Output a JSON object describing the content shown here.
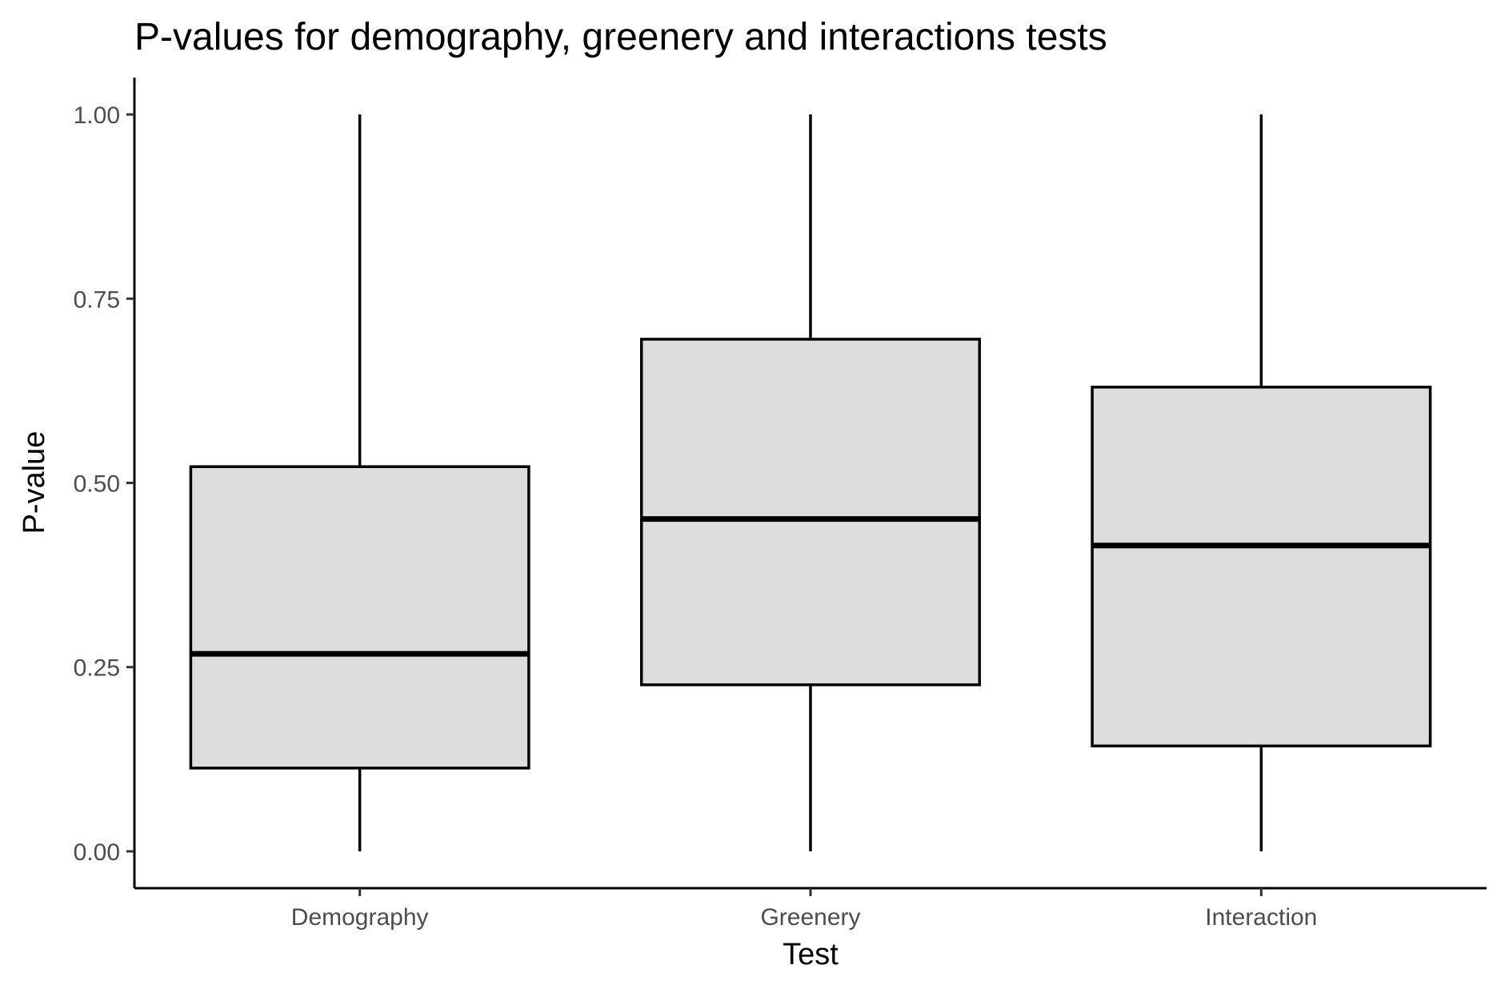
{
  "chart_data": {
    "type": "boxplot",
    "title": "P-values for demography, greenery and interactions tests",
    "xlabel": "Test",
    "ylabel": "P-value",
    "categories": [
      "Demography",
      "Greenery",
      "Interaction"
    ],
    "boxes": [
      {
        "category": "Demography",
        "min": 0.0,
        "q1": 0.113,
        "median": 0.268,
        "q3": 0.522,
        "max": 1.0
      },
      {
        "category": "Greenery",
        "min": 0.0,
        "q1": 0.226,
        "median": 0.451,
        "q3": 0.695,
        "max": 1.0
      },
      {
        "category": "Interaction",
        "min": 0.0,
        "q1": 0.143,
        "median": 0.415,
        "q3": 0.63,
        "max": 1.0
      }
    ],
    "ylim": [
      -0.05,
      1.05
    ],
    "yticks": [
      0.0,
      0.25,
      0.5,
      0.75,
      1.0
    ],
    "ytick_labels": [
      "0.00",
      "0.25",
      "0.50",
      "0.75",
      "1.00"
    ],
    "grid": false,
    "legend": "none",
    "box_fill": "#dddddd",
    "line_color": "#000000"
  }
}
